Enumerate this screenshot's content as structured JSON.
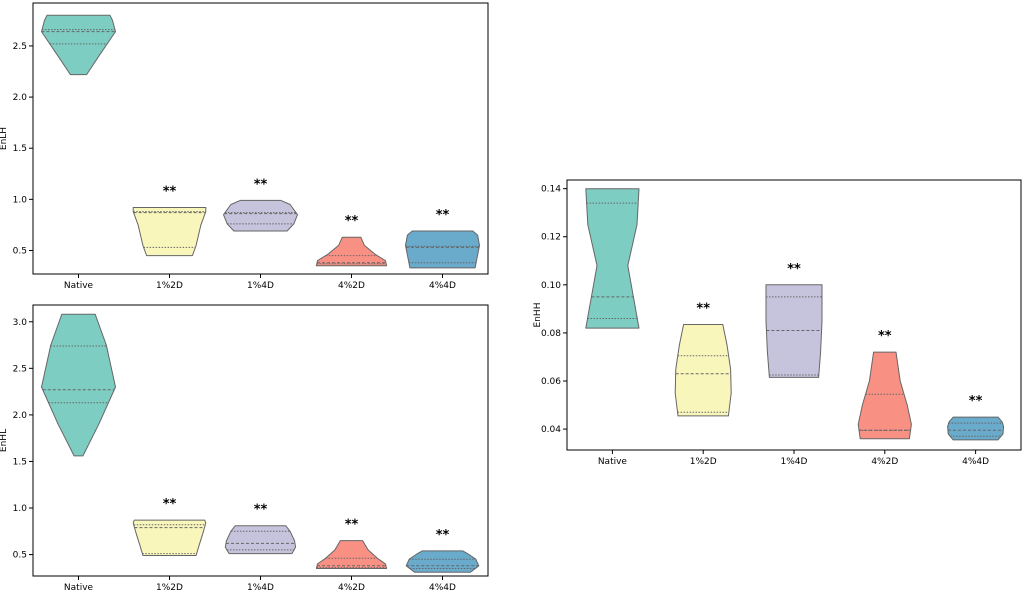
{
  "chart_data": [
    {
      "type": "violin",
      "ylabel": "EnLH",
      "ylim": [
        0.27,
        2.92
      ],
      "yticks": [
        "0.5",
        "1.0",
        "1.5",
        "2.0",
        "2.5"
      ],
      "ytick_values": [
        0.5,
        1.0,
        1.5,
        2.0,
        2.5
      ],
      "categories": [
        "Native",
        "1%2D",
        "1%4D",
        "4%2D",
        "4%4D"
      ],
      "groups": [
        {
          "name": "Native",
          "color": "#7ecdc2",
          "min": 2.22,
          "max": 2.8,
          "q1": 2.52,
          "median": 2.64,
          "q3": 2.66,
          "widths": [
            [
              2.22,
              0.22
            ],
            [
              2.4,
              0.55
            ],
            [
              2.64,
              1.0
            ],
            [
              2.75,
              0.92
            ],
            [
              2.8,
              0.85
            ]
          ],
          "annotation": ""
        },
        {
          "name": "1%2D",
          "color": "#f9f6bc",
          "min": 0.45,
          "max": 0.92,
          "q1": 0.53,
          "median": 0.87,
          "q3": 0.88,
          "widths": [
            [
              0.45,
              0.62
            ],
            [
              0.55,
              0.72
            ],
            [
              0.75,
              0.85
            ],
            [
              0.88,
              0.98
            ],
            [
              0.92,
              0.98
            ]
          ],
          "annotation": "**"
        },
        {
          "name": "1%4D",
          "color": "#c6c3dc",
          "min": 0.69,
          "max": 0.99,
          "q1": 0.76,
          "median": 0.86,
          "q3": 0.87,
          "widths": [
            [
              0.69,
              0.72
            ],
            [
              0.76,
              0.9
            ],
            [
              0.85,
              1.0
            ],
            [
              0.95,
              0.8
            ],
            [
              0.99,
              0.55
            ]
          ],
          "annotation": "**"
        },
        {
          "name": "4%2D",
          "color": "#f99084",
          "min": 0.35,
          "max": 0.63,
          "q1": 0.37,
          "median": 0.38,
          "q3": 0.45,
          "widths": [
            [
              0.35,
              0.95
            ],
            [
              0.4,
              0.92
            ],
            [
              0.46,
              0.65
            ],
            [
              0.55,
              0.35
            ],
            [
              0.63,
              0.25
            ]
          ],
          "annotation": "**"
        },
        {
          "name": "4%4D",
          "color": "#6aaacb",
          "min": 0.33,
          "max": 0.69,
          "q1": 0.38,
          "median": 0.53,
          "q3": 0.54,
          "widths": [
            [
              0.33,
              0.88
            ],
            [
              0.4,
              0.92
            ],
            [
              0.55,
              1.0
            ],
            [
              0.65,
              0.95
            ],
            [
              0.69,
              0.82
            ]
          ],
          "annotation": "**"
        }
      ]
    },
    {
      "type": "violin",
      "ylabel": "EnHL",
      "ylim": [
        0.27,
        3.18
      ],
      "yticks": [
        "0.5",
        "1.0",
        "1.5",
        "2.0",
        "2.5",
        "3.0"
      ],
      "ytick_values": [
        0.5,
        1.0,
        1.5,
        2.0,
        2.5,
        3.0
      ],
      "categories": [
        "Native",
        "1%2D",
        "1%4D",
        "4%2D",
        "4%4D"
      ],
      "groups": [
        {
          "name": "Native",
          "color": "#7ecdc2",
          "min": 1.56,
          "max": 3.08,
          "q1": 2.13,
          "median": 2.27,
          "q3": 2.74,
          "widths": [
            [
              1.56,
              0.12
            ],
            [
              1.9,
              0.55
            ],
            [
              2.3,
              1.0
            ],
            [
              2.75,
              0.75
            ],
            [
              3.08,
              0.45
            ]
          ],
          "annotation": ""
        },
        {
          "name": "1%2D",
          "color": "#f9f6bc",
          "min": 0.49,
          "max": 0.87,
          "q1": 0.51,
          "median": 0.79,
          "q3": 0.82,
          "widths": [
            [
              0.49,
              0.72
            ],
            [
              0.6,
              0.8
            ],
            [
              0.75,
              0.92
            ],
            [
              0.84,
              0.98
            ],
            [
              0.87,
              0.95
            ]
          ],
          "annotation": "**"
        },
        {
          "name": "1%4D",
          "color": "#c6c3dc",
          "min": 0.51,
          "max": 0.81,
          "q1": 0.55,
          "median": 0.62,
          "q3": 0.75,
          "widths": [
            [
              0.51,
              0.85
            ],
            [
              0.58,
              0.95
            ],
            [
              0.65,
              0.92
            ],
            [
              0.75,
              0.8
            ],
            [
              0.81,
              0.68
            ]
          ],
          "annotation": "**"
        },
        {
          "name": "4%2D",
          "color": "#f99084",
          "min": 0.35,
          "max": 0.65,
          "q1": 0.36,
          "median": 0.38,
          "q3": 0.46,
          "widths": [
            [
              0.35,
              0.95
            ],
            [
              0.4,
              0.92
            ],
            [
              0.46,
              0.7
            ],
            [
              0.55,
              0.45
            ],
            [
              0.65,
              0.3
            ]
          ],
          "annotation": "**"
        },
        {
          "name": "4%4D",
          "color": "#6aaacb",
          "min": 0.31,
          "max": 0.54,
          "q1": 0.35,
          "median": 0.38,
          "q3": 0.45,
          "widths": [
            [
              0.31,
              0.75
            ],
            [
              0.38,
              0.98
            ],
            [
              0.45,
              0.9
            ],
            [
              0.5,
              0.72
            ],
            [
              0.54,
              0.55
            ]
          ],
          "annotation": "**"
        }
      ]
    },
    {
      "type": "violin",
      "ylabel": "EnHH",
      "ylim": [
        0.0313,
        0.1436
      ],
      "yticks": [
        "0.04",
        "0.06",
        "0.08",
        "0.10",
        "0.12",
        "0.14"
      ],
      "ytick_values": [
        0.04,
        0.06,
        0.08,
        0.1,
        0.12,
        0.14
      ],
      "categories": [
        "Native",
        "1%2D",
        "1%4D",
        "4%2D",
        "4%4D"
      ],
      "groups": [
        {
          "name": "Native",
          "color": "#7ecdc2",
          "min": 0.082,
          "max": 0.14,
          "q1": 0.086,
          "median": 0.095,
          "q3": 0.134,
          "widths": [
            [
              0.082,
              0.95
            ],
            [
              0.095,
              0.75
            ],
            [
              0.108,
              0.55
            ],
            [
              0.125,
              0.88
            ],
            [
              0.14,
              0.95
            ]
          ],
          "annotation": ""
        },
        {
          "name": "1%2D",
          "color": "#f9f6bc",
          "min": 0.0455,
          "max": 0.0835,
          "q1": 0.047,
          "median": 0.063,
          "q3": 0.0705,
          "widths": [
            [
              0.0455,
              0.9
            ],
            [
              0.055,
              1.0
            ],
            [
              0.065,
              0.98
            ],
            [
              0.075,
              0.85
            ],
            [
              0.0835,
              0.7
            ]
          ],
          "annotation": "**"
        },
        {
          "name": "1%4D",
          "color": "#c6c3dc",
          "min": 0.0615,
          "max": 0.1,
          "q1": 0.0625,
          "median": 0.081,
          "q3": 0.095,
          "widths": [
            [
              0.0615,
              0.88
            ],
            [
              0.072,
              0.95
            ],
            [
              0.085,
              1.0
            ],
            [
              0.095,
              1.0
            ],
            [
              0.1,
              1.0
            ]
          ],
          "annotation": "**"
        },
        {
          "name": "4%2D",
          "color": "#f99084",
          "min": 0.036,
          "max": 0.072,
          "q1": 0.0395,
          "median": 0.0395,
          "q3": 0.0545,
          "widths": [
            [
              0.036,
              0.88
            ],
            [
              0.042,
              0.95
            ],
            [
              0.05,
              0.8
            ],
            [
              0.06,
              0.55
            ],
            [
              0.072,
              0.4
            ]
          ],
          "annotation": "**"
        },
        {
          "name": "4%4D",
          "color": "#6aaacb",
          "min": 0.0355,
          "max": 0.045,
          "q1": 0.037,
          "median": 0.0395,
          "q3": 0.0425,
          "widths": [
            [
              0.0355,
              0.8
            ],
            [
              0.038,
              0.98
            ],
            [
              0.041,
              1.0
            ],
            [
              0.043,
              0.95
            ],
            [
              0.045,
              0.8
            ]
          ],
          "annotation": "**"
        }
      ]
    }
  ]
}
